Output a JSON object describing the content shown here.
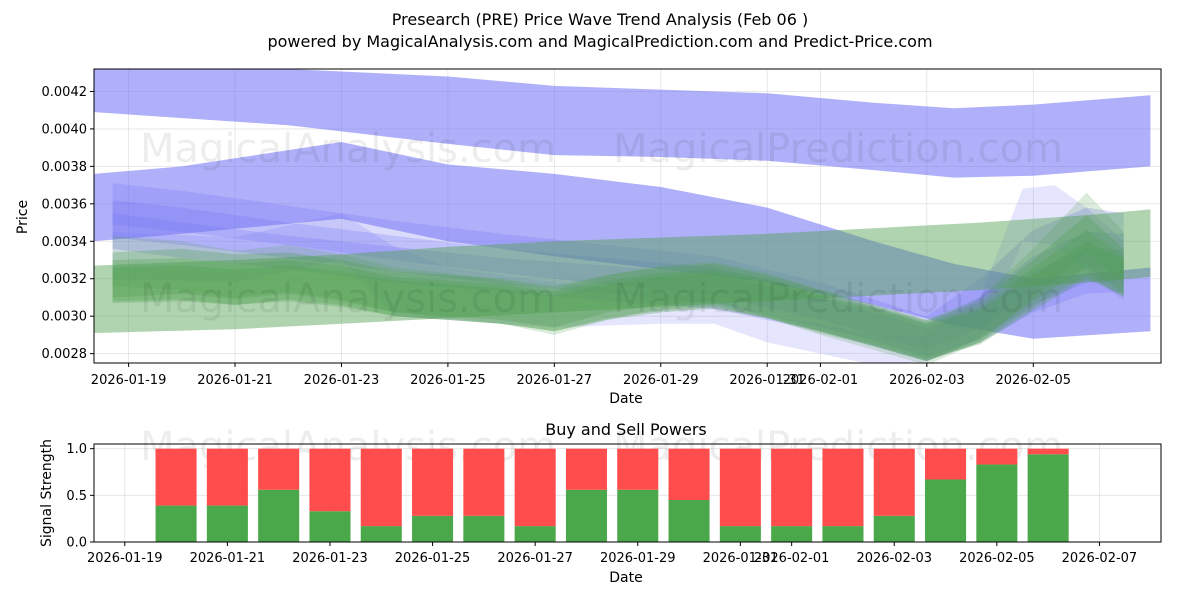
{
  "title": "Presearch (PRE) Price Wave Trend Analysis (Feb 06 )",
  "subtitle": "powered by MagicalAnalysis.com and MagicalPrediction.com and Predict-Price.com",
  "watermarks": [
    "MagicalAnalysis.com",
    "MagicalPrediction.com"
  ],
  "colors": {
    "blue": "#6f6ff5",
    "green": "#4f9f4f",
    "buy": "#4aa84a",
    "sell": "#ff4d4d"
  },
  "chart_data": [
    {
      "type": "area",
      "title": "",
      "xlabel": "Date",
      "ylabel": "Price",
      "ylim": [
        0.00275,
        0.00432
      ],
      "xlim_days": [
        -0.65,
        19.4
      ],
      "x_ticks": [
        {
          "day": 0,
          "label": "2026-01-19"
        },
        {
          "day": 2,
          "label": "2026-01-21"
        },
        {
          "day": 4,
          "label": "2026-01-23"
        },
        {
          "day": 6,
          "label": "2026-01-25"
        },
        {
          "day": 8,
          "label": "2026-01-27"
        },
        {
          "day": 10,
          "label": "2026-01-29"
        },
        {
          "day": 12,
          "label": "2026-01-31"
        },
        {
          "day": 13,
          "label": "2026-02-01"
        },
        {
          "day": 15,
          "label": "2026-02-03"
        },
        {
          "day": 17,
          "label": "2026-02-05"
        }
      ],
      "y_ticks": [
        "0.0028",
        "0.0030",
        "0.0032",
        "0.0034",
        "0.0036",
        "0.0038",
        "0.0040",
        "0.0042"
      ],
      "y_tick_values": [
        0.0028,
        0.003,
        0.0032,
        0.0034,
        0.0036,
        0.0038,
        0.004,
        0.0042
      ],
      "bands": [
        {
          "name": "blue-wide-upper",
          "color": "blue",
          "opacity": 0.55,
          "x": [
            -0.65,
            3,
            6,
            8,
            10,
            12,
            14,
            15.5,
            17,
            19.2
          ],
          "upper": [
            0.00432,
            0.00432,
            0.00428,
            0.00423,
            0.00421,
            0.00419,
            0.00414,
            0.00411,
            0.00413,
            0.00418
          ],
          "lower": [
            0.00409,
            0.00402,
            0.00392,
            0.00386,
            0.00385,
            0.00383,
            0.00378,
            0.00374,
            0.00375,
            0.0038
          ]
        },
        {
          "name": "blue-wide-lower",
          "color": "blue",
          "opacity": 0.55,
          "x": [
            -0.65,
            1,
            4,
            6,
            8,
            10,
            12,
            14,
            15.5,
            17,
            19.2
          ],
          "upper": [
            0.00376,
            0.0038,
            0.00393,
            0.00381,
            0.00376,
            0.00369,
            0.00358,
            0.0034,
            0.00328,
            0.0032,
            0.00326
          ],
          "lower": [
            0.0034,
            0.00344,
            0.00352,
            0.0034,
            0.00332,
            0.00325,
            0.00318,
            0.00306,
            0.00295,
            0.00288,
            0.00292
          ]
        },
        {
          "name": "blue-mid-1",
          "color": "blue",
          "opacity": 0.25,
          "x": [
            -0.3,
            1,
            3,
            5,
            7,
            9,
            11,
            13,
            14,
            15,
            16,
            17,
            18,
            18.7
          ],
          "upper": [
            0.00371,
            0.00367,
            0.00359,
            0.00351,
            0.00344,
            0.00338,
            0.00332,
            0.00318,
            0.00309,
            0.003,
            0.0032,
            0.00346,
            0.00358,
            0.00355
          ],
          "lower": [
            0.00349,
            0.00345,
            0.00338,
            0.0033,
            0.00323,
            0.00317,
            0.00311,
            0.00298,
            0.0029,
            0.00282,
            0.00294,
            0.00314,
            0.00326,
            0.00324
          ]
        },
        {
          "name": "blue-mid-2",
          "color": "blue",
          "opacity": 0.25,
          "x": [
            -0.3,
            1,
            3,
            5,
            7,
            9,
            11,
            13,
            14,
            15,
            16,
            17,
            18,
            18.7
          ],
          "upper": [
            0.00362,
            0.00358,
            0.0035,
            0.00343,
            0.00336,
            0.00331,
            0.00326,
            0.00313,
            0.00305,
            0.00296,
            0.0031,
            0.00332,
            0.00345,
            0.00344
          ],
          "lower": [
            0.00342,
            0.00338,
            0.00331,
            0.00324,
            0.00317,
            0.00312,
            0.00307,
            0.00294,
            0.00287,
            0.00278,
            0.00288,
            0.00306,
            0.00318,
            0.00318
          ]
        },
        {
          "name": "blue-mid-3",
          "color": "blue",
          "opacity": 0.25,
          "x": [
            -0.3,
            1,
            3,
            5,
            7,
            9,
            11,
            13,
            14,
            15,
            16,
            17,
            18,
            18.7
          ],
          "upper": [
            0.00355,
            0.0035,
            0.00343,
            0.00337,
            0.00331,
            0.00327,
            0.00322,
            0.0031,
            0.00302,
            0.00294,
            0.00304,
            0.00324,
            0.00336,
            0.00336
          ],
          "lower": [
            0.00336,
            0.00331,
            0.00325,
            0.00318,
            0.00313,
            0.00308,
            0.00304,
            0.00292,
            0.00284,
            0.00276,
            0.00286,
            0.00302,
            0.00312,
            0.00313
          ]
        },
        {
          "name": "blue-spike",
          "color": "blue",
          "opacity": 0.18,
          "x": [
            -0.3,
            2,
            4,
            5,
            6,
            8,
            10,
            11,
            12,
            13,
            14,
            15,
            16,
            16.8,
            17.4,
            18,
            18.7
          ],
          "upper": [
            0.00345,
            0.00342,
            0.00355,
            0.00337,
            0.00326,
            0.00318,
            0.00312,
            0.0031,
            0.003,
            0.00296,
            0.0029,
            0.0029,
            0.0031,
            0.00368,
            0.0037,
            0.00358,
            0.0034
          ],
          "lower": [
            0.0032,
            0.00318,
            0.0033,
            0.003,
            0.00298,
            0.00294,
            0.00296,
            0.00296,
            0.00286,
            0.0028,
            0.00274,
            0.00276,
            0.00288,
            0.0034,
            0.00338,
            0.00324,
            0.00308
          ]
        },
        {
          "name": "green-wide",
          "color": "green",
          "opacity": 0.45,
          "x": [
            -0.65,
            2,
            4,
            6,
            8,
            10,
            12,
            14,
            16,
            18,
            19.2
          ],
          "upper": [
            0.00327,
            0.0033,
            0.00333,
            0.00337,
            0.0034,
            0.00342,
            0.00344,
            0.00347,
            0.0035,
            0.00354,
            0.00357
          ],
          "lower": [
            0.00291,
            0.00293,
            0.00296,
            0.00299,
            0.00302,
            0.00305,
            0.00308,
            0.00311,
            0.00314,
            0.00318,
            0.00321
          ]
        },
        {
          "name": "green-mid-1",
          "color": "green",
          "opacity": 0.3,
          "x": [
            -0.3,
            1,
            2,
            3,
            4,
            5,
            6,
            7,
            8,
            9,
            10,
            11,
            12,
            13,
            14,
            15,
            16,
            17,
            18,
            18.7
          ],
          "upper": [
            0.00334,
            0.00336,
            0.00333,
            0.00334,
            0.0033,
            0.00324,
            0.00322,
            0.0032,
            0.00316,
            0.00322,
            0.00326,
            0.00328,
            0.00322,
            0.00314,
            0.00306,
            0.00298,
            0.00308,
            0.0033,
            0.00354,
            0.00336
          ],
          "lower": [
            0.0031,
            0.00312,
            0.00309,
            0.00312,
            0.00308,
            0.00302,
            0.003,
            0.00298,
            0.00294,
            0.00302,
            0.00306,
            0.00308,
            0.003,
            0.00292,
            0.00284,
            0.00276,
            0.00288,
            0.00308,
            0.00326,
            0.00312
          ]
        },
        {
          "name": "green-mid-2",
          "color": "green",
          "opacity": 0.3,
          "x": [
            -0.3,
            1,
            2,
            3,
            4,
            5,
            6,
            7,
            8,
            9,
            10,
            11,
            12,
            13,
            14,
            15,
            16,
            17,
            18,
            18.7
          ],
          "upper": [
            0.0033,
            0.00331,
            0.00328,
            0.0033,
            0.00327,
            0.00321,
            0.00319,
            0.00317,
            0.00313,
            0.00319,
            0.00323,
            0.00325,
            0.0032,
            0.00312,
            0.00305,
            0.00297,
            0.00305,
            0.00326,
            0.00346,
            0.00332
          ],
          "lower": [
            0.00308,
            0.00309,
            0.00306,
            0.00309,
            0.00306,
            0.003,
            0.00298,
            0.00296,
            0.00292,
            0.00299,
            0.00303,
            0.00305,
            0.00299,
            0.00291,
            0.00284,
            0.00276,
            0.00286,
            0.00305,
            0.00322,
            0.0031
          ]
        },
        {
          "name": "green-mid-3",
          "color": "green",
          "opacity": 0.3,
          "x": [
            -0.3,
            1,
            2,
            3,
            4,
            5,
            6,
            7,
            8,
            9,
            10,
            11,
            12,
            13,
            14,
            15,
            16,
            17,
            18,
            18.7
          ],
          "upper": [
            0.00326,
            0.00327,
            0.00325,
            0.00327,
            0.00324,
            0.00319,
            0.00317,
            0.00315,
            0.00311,
            0.00317,
            0.00321,
            0.00323,
            0.00318,
            0.00311,
            0.00304,
            0.00296,
            0.00303,
            0.00322,
            0.0034,
            0.0033
          ],
          "lower": [
            0.00307,
            0.00308,
            0.00306,
            0.00308,
            0.00305,
            0.003,
            0.00298,
            0.00296,
            0.00292,
            0.00298,
            0.00302,
            0.00304,
            0.00299,
            0.00292,
            0.00285,
            0.00277,
            0.00285,
            0.00303,
            0.0032,
            0.00311
          ]
        },
        {
          "name": "green-spike",
          "color": "green",
          "opacity": 0.2,
          "x": [
            -0.3,
            1,
            2,
            3,
            4,
            5,
            6,
            7,
            8,
            9,
            10,
            11,
            12,
            13,
            14,
            15,
            16,
            17,
            18,
            18.7
          ],
          "upper": [
            0.00343,
            0.0034,
            0.00335,
            0.00338,
            0.00333,
            0.00326,
            0.00323,
            0.00319,
            0.00314,
            0.00322,
            0.00327,
            0.00329,
            0.00323,
            0.00314,
            0.00306,
            0.00298,
            0.0031,
            0.00336,
            0.00366,
            0.00345
          ],
          "lower": [
            0.00316,
            0.00314,
            0.0031,
            0.00313,
            0.00309,
            0.00302,
            0.00299,
            0.00296,
            0.0029,
            0.00298,
            0.00304,
            0.00306,
            0.00299,
            0.0029,
            0.00282,
            0.00274,
            0.00286,
            0.0031,
            0.00334,
            0.00318
          ]
        }
      ]
    },
    {
      "type": "bar",
      "title": "Buy and Sell Powers",
      "xlabel": "Date",
      "ylabel": "Signal Strength",
      "ylim": [
        0,
        1.05
      ],
      "xlim_days": [
        -1.6,
        19.2
      ],
      "x_ticks": [
        {
          "day": -1,
          "label": "2026-01-19"
        },
        {
          "day": 1,
          "label": "2026-01-21"
        },
        {
          "day": 3,
          "label": "2026-01-23"
        },
        {
          "day": 5,
          "label": "2026-01-25"
        },
        {
          "day": 7,
          "label": "2026-01-27"
        },
        {
          "day": 9,
          "label": "2026-01-29"
        },
        {
          "day": 11,
          "label": "2026-01-31"
        },
        {
          "day": 12,
          "label": "2026-02-01"
        },
        {
          "day": 14,
          "label": "2026-02-03"
        },
        {
          "day": 16,
          "label": "2026-02-05"
        },
        {
          "day": 18,
          "label": "2026-02-07"
        }
      ],
      "y_ticks": [
        "0.0",
        "0.5",
        "1.0"
      ],
      "y_tick_values": [
        0.0,
        0.5,
        1.0
      ],
      "categories": [
        "2026-01-20",
        "2026-01-21",
        "2026-01-22",
        "2026-01-23",
        "2026-01-24",
        "2026-01-25",
        "2026-01-26",
        "2026-01-27",
        "2026-01-28",
        "2026-01-29",
        "2026-01-30",
        "2026-01-31",
        "2026-02-01",
        "2026-02-02",
        "2026-02-03",
        "2026-02-04",
        "2026-02-05",
        "2026-02-06"
      ],
      "series": [
        {
          "name": "Buy",
          "color": "buy",
          "values": [
            0.39,
            0.39,
            0.56,
            0.33,
            0.17,
            0.28,
            0.28,
            0.17,
            0.56,
            0.56,
            0.45,
            0.17,
            0.17,
            0.17,
            0.28,
            0.67,
            0.83,
            0.94
          ]
        },
        {
          "name": "Sell",
          "color": "sell",
          "values": [
            0.61,
            0.61,
            0.44,
            0.67,
            0.83,
            0.72,
            0.72,
            0.83,
            0.44,
            0.44,
            0.55,
            0.83,
            0.83,
            0.83,
            0.72,
            0.33,
            0.17,
            0.06
          ]
        }
      ]
    }
  ]
}
